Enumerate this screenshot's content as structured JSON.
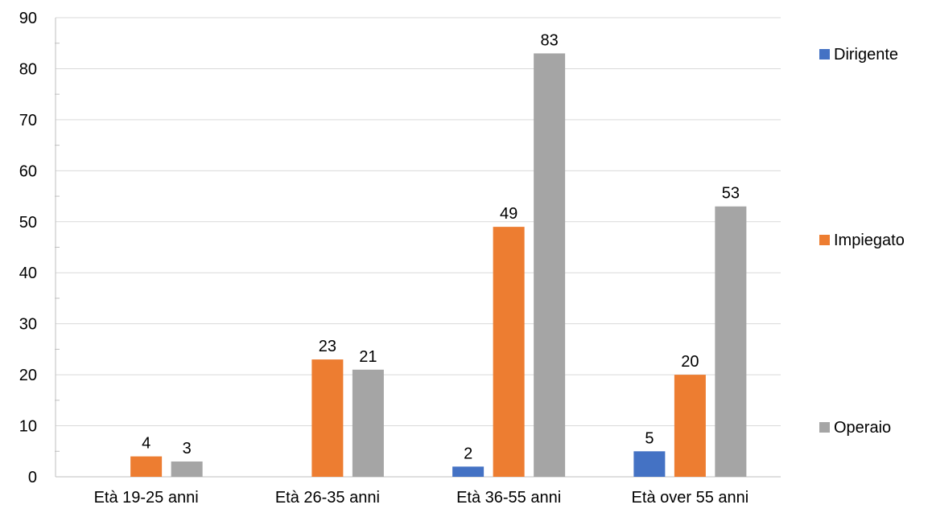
{
  "chart_data": {
    "type": "bar",
    "title": "",
    "xlabel": "",
    "ylabel": "",
    "categories": [
      "Età 19-25 anni",
      "Età 26-35 anni",
      "Età 36-55 anni",
      "Età over 55 anni"
    ],
    "series": [
      {
        "name": "Dirigente",
        "color": "#4472C4",
        "values": [
          null,
          null,
          2,
          5
        ]
      },
      {
        "name": "Impiegato",
        "color": "#ED7D31",
        "values": [
          4,
          23,
          49,
          20
        ]
      },
      {
        "name": "Operaio",
        "color": "#A5A5A5",
        "values": [
          3,
          21,
          83,
          53
        ]
      }
    ],
    "ylim": [
      0,
      90
    ],
    "yticks": [
      0,
      10,
      20,
      30,
      40,
      50,
      60,
      70,
      80,
      90
    ],
    "grid": true,
    "legend": "right",
    "data_labels": true
  }
}
